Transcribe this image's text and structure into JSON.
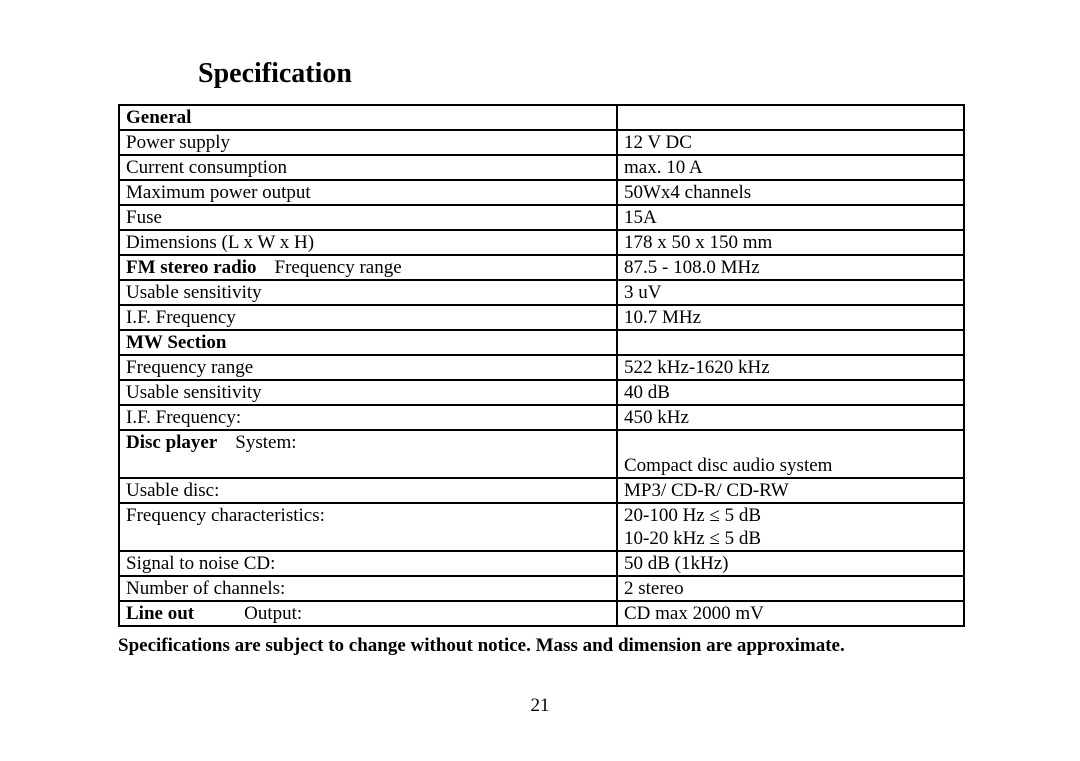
{
  "title": "Specification",
  "page_number": "21",
  "footnote": "Specifications are subject to change without notice. Mass and dimension are approximate.",
  "rows": [
    {
      "left_bold": "General",
      "left": "",
      "right": ""
    },
    {
      "left_bold": "",
      "left": "Power supply",
      "right": "12 V DC"
    },
    {
      "left_bold": "",
      "left": "Current consumption",
      "right": "max. 10 A"
    },
    {
      "left_bold": "",
      "left": "Maximum power output",
      "right": "50Wx4 channels"
    },
    {
      "left_bold": "",
      "left": "Fuse",
      "right": "15A"
    },
    {
      "left_bold": "",
      "left": "Dimensions (L x W x H)",
      "right": "178 x 50 x 150 mm"
    },
    {
      "left_bold": "FM stereo radio",
      "left": "Frequency range",
      "right": "87.5 - 108.0 MHz",
      "spacing": "pad-right"
    },
    {
      "left_bold": "",
      "left": "Usable sensitivity",
      "right": "3 uV"
    },
    {
      "left_bold": "",
      "left": "I.F. Frequency",
      "right": "10.7 MHz"
    },
    {
      "left_bold": "MW Section",
      "left": "",
      "right": ""
    },
    {
      "left_bold": "",
      "left": "Frequency range",
      "right": "522 kHz-1620 kHz"
    },
    {
      "left_bold": "",
      "left": "Usable sensitivity",
      "right": "40 dB"
    },
    {
      "left_bold": "",
      "left": "I.F. Frequency:",
      "right": "450 kHz"
    },
    {
      "left_bold": "Disc player",
      "left": "System:",
      "right": "\nCompact disc audio system",
      "spacing": "pad-right",
      "multiline": true
    },
    {
      "left_bold": "",
      "left": "Usable disc:",
      "right": "MP3/ CD-R/ CD-RW"
    },
    {
      "left_bold": "",
      "left": "Frequency characteristics:",
      "right": "20-100 Hz ≤ 5 dB\n10-20 kHz ≤ 5 dB",
      "multiline": true
    },
    {
      "left_bold": "",
      "left": "Signal to noise CD:",
      "right": "50 dB (1kHz)"
    },
    {
      "left_bold": "",
      "left": "Number of channels:",
      "right": "2 stereo"
    },
    {
      "left_bold": "Line out",
      "left": "Output:",
      "right": "CD max 2000 mV",
      "spacing": "pad-right-wide"
    }
  ]
}
